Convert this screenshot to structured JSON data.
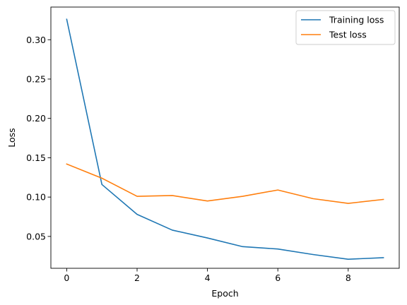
{
  "chart_data": {
    "type": "line",
    "title": "",
    "xlabel": "Epoch",
    "ylabel": "Loss",
    "x": [
      0,
      1,
      2,
      3,
      4,
      5,
      6,
      7,
      8,
      9
    ],
    "xlim": [
      -0.45,
      9.45
    ],
    "ylim": [
      0.0095,
      0.3415
    ],
    "xticks": [
      0,
      2,
      4,
      6,
      8
    ],
    "yticks": [
      0.05,
      0.1,
      0.15,
      0.2,
      0.25,
      0.3
    ],
    "xtick_labels": [
      "0",
      "2",
      "4",
      "6",
      "8"
    ],
    "ytick_labels": [
      "0.05",
      "0.10",
      "0.15",
      "0.20",
      "0.25",
      "0.30"
    ],
    "grid": false,
    "legend_position": "top-right",
    "series": [
      {
        "name": "Training loss",
        "color": "#1f77b4",
        "values": [
          0.326,
          0.116,
          0.078,
          0.058,
          0.048,
          0.037,
          0.034,
          0.027,
          0.021,
          0.023
        ]
      },
      {
        "name": "Test loss",
        "color": "#ff7f0e",
        "values": [
          0.142,
          0.124,
          0.101,
          0.102,
          0.095,
          0.101,
          0.109,
          0.098,
          0.092,
          0.097
        ]
      }
    ]
  }
}
